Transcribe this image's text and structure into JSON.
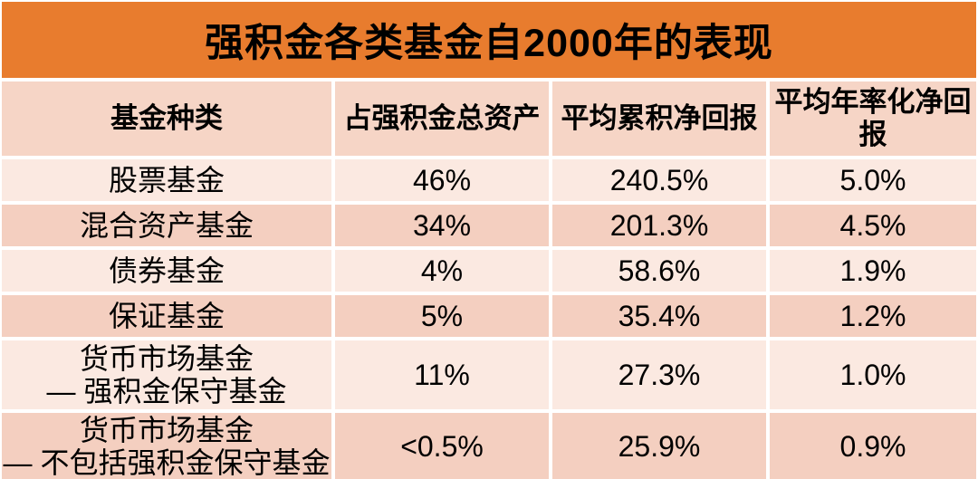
{
  "title": "强积金各类基金自2000年的表现",
  "colors": {
    "banner_orange": "#E87C2E",
    "header_pink": "#F6D5C6",
    "row_light_pink": "#FBE9E1",
    "row_dark_pink": "#F4CFC0",
    "gridline_white": "#FFFFFF",
    "text": "#000000"
  },
  "chart_data": {
    "type": "table",
    "title": "强积金各类基金自2000年的表现",
    "columns": [
      "基金种类",
      "占强积金总资产",
      "平均累积净回报",
      "平均年率化净回报"
    ],
    "rows": [
      [
        "股票基金",
        "46%",
        "240.5%",
        "5.0%"
      ],
      [
        "混合资产基金",
        "34%",
        "201.3%",
        "4.5%"
      ],
      [
        "债券基金",
        "4%",
        "58.6%",
        "1.9%"
      ],
      [
        "保证基金",
        "5%",
        "35.4%",
        "1.2%"
      ],
      [
        "货币市场基金 — 强积金保守基金",
        "11%",
        "27.3%",
        "1.0%"
      ],
      [
        "货币市场基金 — 不包括强积金保守基金",
        "<0.5%",
        "25.9%",
        "0.9%"
      ]
    ],
    "layout_hints": "banded pink rows separated by white gridlines, orange title banner, all cells center-aligned"
  },
  "table_display": {
    "headers": [
      "基金种类",
      "占强积金总资产",
      "平均累积净回报",
      "平均年率化净回报"
    ],
    "rows": [
      {
        "line1": "股票基金",
        "line2": "",
        "share": "46%",
        "cumulative": "240.5%",
        "annualized": "5.0%"
      },
      {
        "line1": "混合资产基金",
        "line2": "",
        "share": "34%",
        "cumulative": "201.3%",
        "annualized": "4.5%"
      },
      {
        "line1": "债券基金",
        "line2": "",
        "share": "4%",
        "cumulative": "58.6%",
        "annualized": "1.9%"
      },
      {
        "line1": "保证基金",
        "line2": "",
        "share": "5%",
        "cumulative": "35.4%",
        "annualized": "1.2%"
      },
      {
        "line1": "货币市场基金",
        "line2": "— 强积金保守基金",
        "share": "11%",
        "cumulative": "27.3%",
        "annualized": "1.0%"
      },
      {
        "line1": "货币市场基金",
        "line2": "— 不包括强积金保守基金",
        "share": "<0.5%",
        "cumulative": "25.9%",
        "annualized": "0.9%"
      }
    ]
  }
}
